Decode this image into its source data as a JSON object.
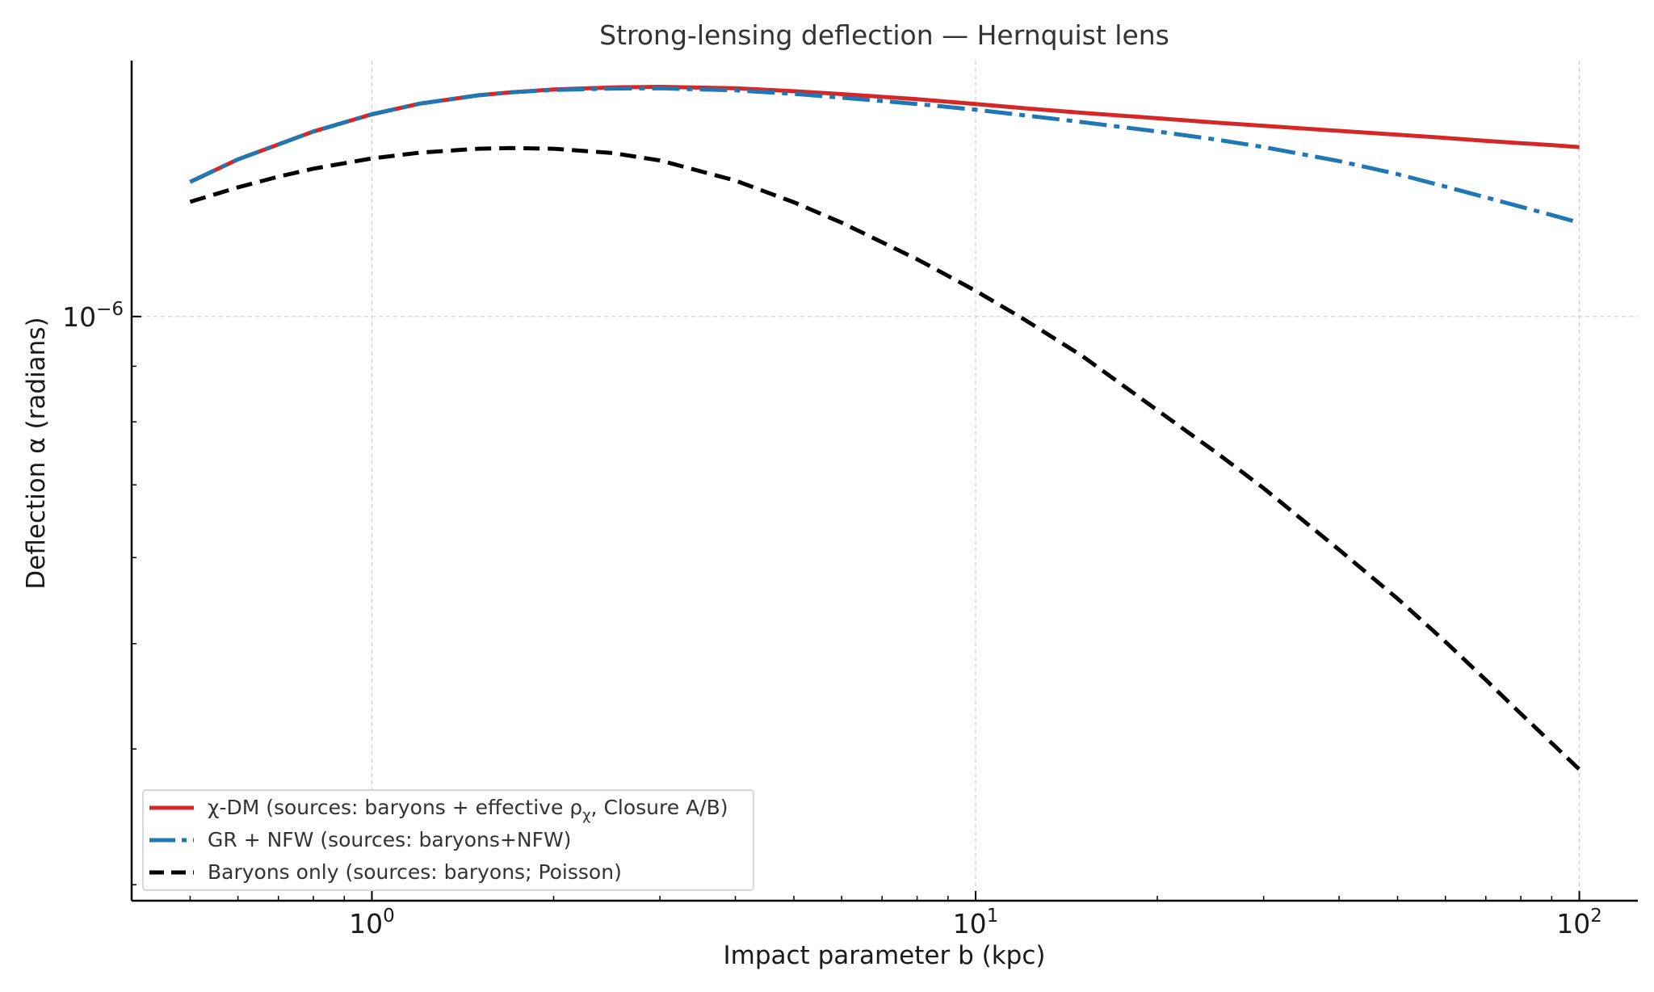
{
  "chart_data": {
    "type": "line",
    "title": "Strong-lensing deflection — Hernquist lens",
    "xlabel": "Impact parameter b (kpc)",
    "ylabel": "Deflection α (radians)",
    "xscale": "log",
    "yscale": "log",
    "xlim": [
      0.4,
      125
    ],
    "ylim": [
      2.9e-07,
      1.72e-06
    ],
    "x_ticks": [
      {
        "value": 1,
        "base": "10",
        "exp": "0"
      },
      {
        "value": 10,
        "base": "10",
        "exp": "1"
      },
      {
        "value": 100,
        "base": "10",
        "exp": "2"
      }
    ],
    "y_ticks": [
      {
        "value": 1e-06,
        "base": "10",
        "exp": "−6"
      }
    ],
    "grid": true,
    "legend_position": "lower-left",
    "x": [
      0.5,
      0.6,
      0.7,
      0.8,
      1.0,
      1.2,
      1.5,
      1.7,
      2.0,
      2.5,
      3.0,
      4.0,
      5.0,
      6.0,
      8.0,
      10.0,
      12.0,
      15.0,
      20.0,
      25.0,
      30.0,
      40.0,
      50.0,
      60.0,
      70.0,
      80.0,
      90.0,
      100.0
    ],
    "series": [
      {
        "name": "χ-DM (sources: baryons + effective ρχ, Closure A/B)",
        "legend_main": "χ-DM (sources: baryons + effective ρ",
        "legend_sub": "χ",
        "legend_tail": ", Closure A/B)",
        "color": "#d62728",
        "style": "solid",
        "values": [
          1.33e-06,
          1.395e-06,
          1.44e-06,
          1.48e-06,
          1.535e-06,
          1.57e-06,
          1.598e-06,
          1.608e-06,
          1.618e-06,
          1.625e-06,
          1.627e-06,
          1.622e-06,
          1.612e-06,
          1.602e-06,
          1.585e-06,
          1.569e-06,
          1.555e-06,
          1.54e-06,
          1.522e-06,
          1.508e-06,
          1.498e-06,
          1.482e-06,
          1.47e-06,
          1.46e-06,
          1.451e-06,
          1.444e-06,
          1.438e-06,
          1.432e-06
        ]
      },
      {
        "name": "GR + NFW (sources: baryons+NFW)",
        "color": "#1f77b4",
        "style": "dashdot",
        "values": [
          1.33e-06,
          1.395e-06,
          1.44e-06,
          1.48e-06,
          1.535e-06,
          1.57e-06,
          1.598e-06,
          1.608e-06,
          1.616e-06,
          1.621e-06,
          1.622e-06,
          1.615e-06,
          1.603e-06,
          1.59e-06,
          1.569e-06,
          1.55e-06,
          1.532e-06,
          1.51e-06,
          1.48e-06,
          1.455e-06,
          1.432e-06,
          1.39e-06,
          1.352e-06,
          1.317e-06,
          1.287e-06,
          1.262e-06,
          1.24e-06,
          1.22e-06
        ]
      },
      {
        "name": "Baryons only (sources: baryons; Poisson)",
        "color": "#000000",
        "style": "dashed",
        "values": [
          1.275e-06,
          1.315e-06,
          1.345e-06,
          1.368e-06,
          1.398e-06,
          1.415e-06,
          1.427e-06,
          1.429e-06,
          1.427e-06,
          1.414e-06,
          1.392e-06,
          1.334e-06,
          1.274e-06,
          1.22e-06,
          1.129e-06,
          1.056e-06,
          9.95e-07,
          9.2e-07,
          8.2e-07,
          7.5e-07,
          6.95e-07,
          6.1e-07,
          5.5e-07,
          5.02e-07,
          4.63e-07,
          4.31e-07,
          4.05e-07,
          3.83e-07
        ]
      }
    ]
  }
}
